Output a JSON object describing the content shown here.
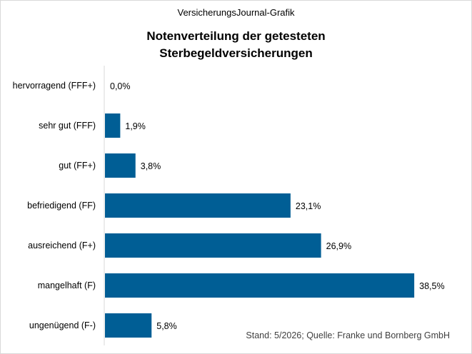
{
  "header": {
    "subtitle": "VersicherungsJournal-Grafik",
    "title_line1": "Notenverteilung der getesteten",
    "title_line2": "Sterbegeldversicherungen"
  },
  "footer": {
    "source": "Stand: 5/2026; Quelle: Franke und Bornberg GmbH"
  },
  "chart_data": {
    "type": "bar",
    "orientation": "horizontal",
    "title": "Notenverteilung der getesteten Sterbegeldversicherungen",
    "categories": [
      "hervorragend (FFF+)",
      "sehr gut (FFF)",
      "gut (FF+)",
      "befriedigend (FF)",
      "ausreichend (F+)",
      "mangelhaft (F)",
      "ungenügend (F-)"
    ],
    "values": [
      0.0,
      1.9,
      3.8,
      23.1,
      26.9,
      38.5,
      5.8
    ],
    "value_labels": [
      "0,0%",
      "1,9%",
      "3,8%",
      "23,1%",
      "26,9%",
      "38,5%",
      "5,8%"
    ],
    "xlim": [
      0,
      40
    ],
    "bar_color": "#005e95",
    "grid": false,
    "legend": "none"
  }
}
